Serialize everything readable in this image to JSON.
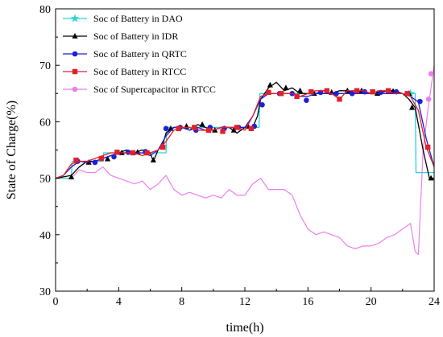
{
  "chart_data": {
    "type": "line",
    "xlabel": "time(h)",
    "ylabel": "State of Charge(%)",
    "xlim": [
      0,
      24
    ],
    "ylim": [
      30,
      80
    ],
    "x_ticks": [
      "0",
      "4",
      "8",
      "12",
      "16",
      "20",
      "24"
    ],
    "y_ticks": [
      "30",
      "40",
      "50",
      "60",
      "70",
      "80"
    ],
    "grid": false,
    "legend_position": "top-left",
    "series": [
      {
        "name": "Soc of Battery in DAO",
        "color": "#2ad4d4",
        "marker": "star",
        "x": [
          0,
          1,
          1.05,
          3,
          3.05,
          7,
          7.05,
          12.9,
          12.95,
          22.8,
          22.85,
          24
        ],
        "y": [
          50,
          50,
          53,
          53,
          54.5,
          54.5,
          59,
          59,
          65,
          65,
          51,
          51
        ],
        "marker_x": [
          22.5
        ],
        "marker_y": [
          65
        ]
      },
      {
        "name": "Soc of Battery in IDR",
        "color": "#000000",
        "marker": "triangle",
        "x": [
          0,
          1,
          1.5,
          2,
          2.5,
          3,
          3.5,
          4,
          4.5,
          5,
          5.5,
          6,
          6.2,
          6.5,
          6.8,
          7,
          7.5,
          8,
          8.5,
          9,
          9.5,
          10,
          10.5,
          11,
          11.5,
          12,
          12.5,
          12.8,
          13,
          13.5,
          14,
          14.5,
          15,
          15.5,
          16,
          16.5,
          17,
          17.5,
          18,
          18.5,
          19,
          19.5,
          20,
          20.5,
          21,
          21.5,
          22,
          22.4,
          22.8,
          23.3,
          23.7,
          24
        ],
        "y": [
          50,
          50.5,
          52,
          53,
          53,
          53.5,
          54,
          54.5,
          55,
          54.5,
          55,
          54.5,
          53,
          55,
          56,
          58,
          59,
          59,
          58.5,
          59.5,
          59,
          58.5,
          59,
          59,
          58,
          59,
          59,
          61,
          64,
          66,
          67,
          65.5,
          66,
          65,
          65,
          65,
          65.5,
          65,
          65.5,
          65.5,
          65,
          65.5,
          65,
          65,
          65.5,
          65.5,
          65,
          64,
          62.5,
          55,
          50,
          50
        ],
        "marker_x": [
          1.0,
          2.1,
          3.3,
          4.2,
          5.2,
          6.2,
          7.3,
          8.3,
          9.3,
          10.1,
          11.3,
          12.2,
          13.6,
          14.6,
          15.5,
          16.4,
          17.5,
          18.5,
          19.4,
          20.4,
          21.4,
          22.4,
          22.6,
          23.8
        ],
        "marker_y": [
          50.2,
          52.8,
          53.4,
          54.5,
          54.6,
          53.2,
          58.8,
          59.2,
          59.5,
          58.5,
          58.5,
          59.2,
          66.5,
          66,
          65.5,
          65,
          65.2,
          65.5,
          65.5,
          65,
          65.4,
          65,
          62.5,
          50
        ]
      },
      {
        "name": "Soc of Battery in QRTC",
        "color": "#1f1fd6",
        "marker": "circle",
        "x": [
          0,
          0.5,
          1,
          1.5,
          2,
          2.5,
          3,
          3.5,
          4,
          4.5,
          5,
          5.5,
          6,
          6.5,
          7,
          7.5,
          8,
          8.5,
          9,
          9.5,
          10,
          10.5,
          11,
          11.5,
          12,
          12.5,
          13,
          13.5,
          14,
          14.5,
          15,
          15.5,
          16,
          16.5,
          17,
          17.5,
          18,
          18.5,
          19,
          19.5,
          20,
          20.5,
          21,
          21.5,
          22,
          22.5,
          23,
          23.5,
          24
        ],
        "y": [
          50,
          50.5,
          52,
          53,
          52.8,
          53,
          53.5,
          54,
          54.5,
          54.5,
          54.5,
          54.5,
          54,
          55,
          57.5,
          59,
          59,
          58.5,
          59,
          58.5,
          58.5,
          59,
          59,
          59,
          59,
          61,
          64,
          65,
          65,
          65,
          65,
          64.5,
          64.5,
          65,
          65,
          65,
          65,
          65,
          65,
          65,
          65,
          65,
          65,
          65,
          65,
          64.5,
          63.5,
          57,
          52
        ],
        "marker_x": [
          1.4,
          2.5,
          3.7,
          4.6,
          5.7,
          7.0,
          7.9,
          8.9,
          9.8,
          10.7,
          11.6,
          12.6,
          13.1,
          14.2,
          15.0,
          15.9,
          16.8,
          17.8,
          18.8,
          19.6,
          20.6,
          21.6,
          23.1
        ],
        "marker_y": [
          53,
          52.8,
          53.8,
          54.6,
          54.7,
          58.8,
          59,
          58.5,
          59,
          58.8,
          59,
          59.2,
          63,
          65,
          65,
          63.8,
          65.2,
          65,
          65,
          65.3,
          65.2,
          65.3,
          63.6
        ]
      },
      {
        "name": "Soc of Battery in RTCC",
        "color": "#e0202a",
        "marker": "square",
        "x": [
          0,
          0.5,
          1,
          1.5,
          2,
          2.5,
          3,
          3.5,
          4,
          4.5,
          5,
          5.5,
          6,
          6.5,
          7,
          7.5,
          8,
          8.5,
          9,
          9.5,
          10,
          10.5,
          11,
          11.5,
          12,
          12.5,
          13,
          13.5,
          14,
          14.5,
          15,
          15.5,
          16,
          16.5,
          17,
          17.5,
          18,
          18.5,
          19,
          19.5,
          20,
          20.5,
          21,
          21.5,
          22,
          22.5,
          23,
          23.5,
          24
        ],
        "y": [
          50,
          50.5,
          52.5,
          53,
          53,
          53.5,
          54,
          54.5,
          54.5,
          54.5,
          54.5,
          54,
          54.5,
          55,
          56.5,
          58.5,
          59,
          59,
          58.5,
          58.5,
          58.5,
          59,
          59,
          59,
          58.5,
          61,
          64.5,
          65,
          65,
          65,
          65,
          64.5,
          65,
          65.5,
          65.5,
          65,
          64,
          65.5,
          65.5,
          65.5,
          65,
          65.5,
          65.5,
          65,
          65,
          64.5,
          62,
          55.5,
          52
        ],
        "marker_x": [
          1.3,
          2.9,
          3.9,
          4.9,
          5.8,
          6.8,
          7.8,
          8.8,
          9.7,
          10.6,
          11.5,
          12.4,
          13.5,
          14.3,
          15.3,
          16.2,
          17.2,
          18.0,
          19.1,
          20.1,
          21.1,
          22.3,
          23.6
        ],
        "marker_y": [
          53.2,
          53.5,
          54.6,
          54.5,
          54.5,
          55.5,
          58.8,
          59,
          58.5,
          58.3,
          59,
          58.8,
          65.2,
          65,
          64.5,
          65.3,
          65.5,
          64,
          65.5,
          65.3,
          65.5,
          65,
          55.5
        ]
      },
      {
        "name": "Soc of Supercapacitor in RTCC",
        "color": "#ee7eee",
        "marker": "circle",
        "x": [
          0,
          0.5,
          1,
          1.5,
          2,
          2.5,
          3,
          3.5,
          4,
          4.5,
          5,
          5.5,
          6,
          6.5,
          7,
          7.5,
          8,
          8.5,
          9,
          9.5,
          10,
          10.5,
          11,
          11.5,
          12,
          12.5,
          13,
          13.5,
          14,
          14.5,
          15,
          15.5,
          16,
          16.5,
          17,
          17.5,
          18,
          18.5,
          19,
          19.5,
          20,
          20.5,
          21,
          21.5,
          22,
          22.5,
          22.8,
          23,
          23.3,
          23.6,
          24
        ],
        "y": [
          50,
          50,
          50,
          51.5,
          51,
          51,
          52,
          50.5,
          50,
          49.5,
          49,
          49.5,
          48,
          49,
          50.5,
          48,
          47,
          47.5,
          47,
          46.5,
          47,
          46.5,
          48,
          47,
          47,
          49,
          50,
          48,
          48,
          48,
          47,
          43.5,
          41,
          40,
          40.5,
          40,
          39.5,
          38,
          37.5,
          38,
          38,
          38.5,
          39.5,
          40,
          41,
          42,
          37,
          36.5,
          55,
          62,
          70
        ],
        "marker_x": [
          23.65,
          23.8
        ],
        "marker_y": [
          64,
          68.5
        ]
      }
    ]
  }
}
